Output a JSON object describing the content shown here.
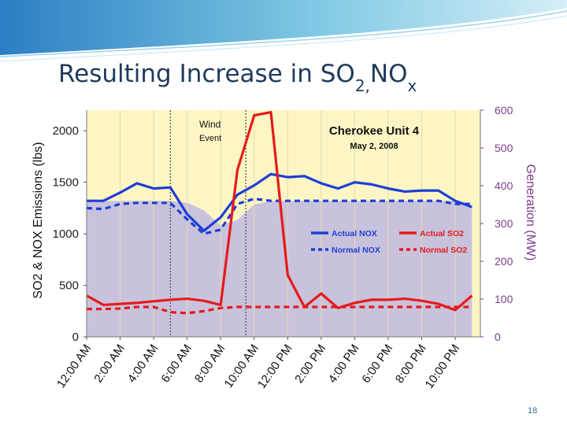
{
  "slide": {
    "title_main": "Resulting Increase in SO",
    "title_sub1": "2,",
    "title_mid": "NO",
    "title_sub2": "x",
    "page_number": "18"
  },
  "colors": {
    "title": "#1f3b5c",
    "plot_bg": "#fdf6c4",
    "generation_fill": "#c9c2dd",
    "nox": "#1d3fd6",
    "so2": "#e41b1b",
    "right_axis": "#7b3d8c"
  },
  "chart_data": {
    "type": "line",
    "title": "Cherokee Unit 4",
    "subtitle": "May 2, 2008",
    "ylabel": "SO2 & NOX Emissions (lbs)",
    "y2label": "Generation (MW)",
    "ylim": [
      0,
      2200
    ],
    "y2lim": [
      0,
      600
    ],
    "yticks": [
      "0",
      "500",
      "1000",
      "1500",
      "2000"
    ],
    "y2ticks": [
      "0",
      "100",
      "200",
      "300",
      "400",
      "500",
      "600"
    ],
    "xlim": [
      0,
      23.5
    ],
    "x": [
      0,
      1,
      2,
      3,
      4,
      5,
      6,
      7,
      8,
      9,
      10,
      11,
      12,
      13,
      14,
      15,
      16,
      17,
      18,
      19,
      20,
      21,
      22,
      23
    ],
    "xtick_labels": [
      "12:00 AM",
      "2:00 AM",
      "4:00 AM",
      "6:00 AM",
      "8:00 AM",
      "10:00 AM",
      "12:00 PM",
      "2:00 PM",
      "4:00 PM",
      "6:00 PM",
      "8:00 PM",
      "10:00 PM"
    ],
    "annotation": {
      "line1": "Wind",
      "line2": "Event"
    },
    "event_window": [
      5,
      9.5
    ],
    "generation": [
      360,
      360,
      360,
      360,
      360,
      360,
      355,
      335,
      295,
      310,
      350,
      360,
      360,
      360,
      360,
      360,
      360,
      360,
      360,
      360,
      360,
      360,
      360,
      340
    ],
    "series": [
      {
        "name": "Actual NOX",
        "values": [
          1320,
          1320,
          1400,
          1490,
          1440,
          1450,
          1190,
          1030,
          1160,
          1380,
          1470,
          1580,
          1550,
          1560,
          1490,
          1440,
          1500,
          1480,
          1440,
          1410,
          1420,
          1420,
          1320,
          1260
        ]
      },
      {
        "name": "Normal NOX",
        "values": [
          1250,
          1240,
          1290,
          1300,
          1300,
          1300,
          1140,
          1000,
          1040,
          1290,
          1340,
          1320,
          1320,
          1320,
          1320,
          1320,
          1320,
          1320,
          1320,
          1320,
          1320,
          1320,
          1290,
          1290
        ]
      },
      {
        "name": "Actual SO2",
        "values": [
          400,
          310,
          320,
          330,
          345,
          360,
          370,
          350,
          310,
          1620,
          2150,
          2180,
          600,
          290,
          420,
          280,
          330,
          360,
          360,
          370,
          350,
          320,
          260,
          400
        ]
      },
      {
        "name": "Normal SO2",
        "values": [
          270,
          270,
          275,
          290,
          290,
          240,
          230,
          250,
          280,
          290,
          290,
          290,
          290,
          290,
          290,
          290,
          290,
          290,
          290,
          290,
          290,
          290,
          290,
          290
        ]
      }
    ],
    "legend_position": "inside-right"
  }
}
